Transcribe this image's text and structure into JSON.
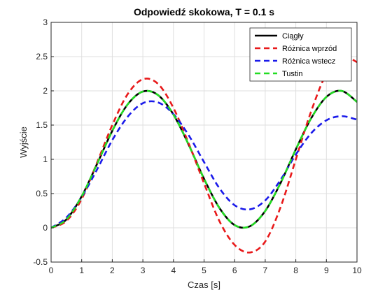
{
  "chart_data": {
    "type": "line",
    "title": "Odpowiedź skokowa, T = 0.1 s",
    "xlabel": "Czas [s]",
    "ylabel": "Wyjście",
    "xlim": [
      0,
      10
    ],
    "ylim": [
      -0.5,
      3
    ],
    "xticks": [
      "0",
      "1",
      "2",
      "3",
      "4",
      "5",
      "6",
      "7",
      "8",
      "9",
      "10"
    ],
    "yticks": [
      "-0.5",
      "0",
      "0.5",
      "1",
      "1.5",
      "2",
      "2.5",
      "3"
    ],
    "grid": true,
    "legend_position": "top-right",
    "series": [
      {
        "name": "Ciągły",
        "color": "#000000",
        "dash": "solid",
        "x": [
          0,
          0.5,
          1,
          1.5,
          2,
          2.5,
          3,
          3.5,
          4,
          4.5,
          5,
          5.5,
          6,
          6.5,
          7,
          7.5,
          8,
          8.5,
          9,
          9.5,
          10
        ],
        "y": [
          0,
          0.122,
          0.46,
          0.93,
          1.416,
          1.801,
          1.99,
          1.937,
          1.654,
          1.211,
          0.716,
          0.292,
          0.04,
          0.023,
          0.246,
          0.653,
          1.145,
          1.598,
          1.911,
          1.999,
          1.839
        ]
      },
      {
        "name": "Różnica wprzód",
        "color": "#e8191a",
        "dash": "dashed",
        "x": [
          0,
          0.5,
          1,
          1.5,
          2,
          2.5,
          3,
          3.5,
          4,
          4.5,
          5,
          5.5,
          6,
          6.5,
          7,
          7.5,
          8,
          8.5,
          9,
          9.5,
          10
        ],
        "y": [
          0,
          0.1,
          0.42,
          0.95,
          1.5,
          1.95,
          2.17,
          2.1,
          1.75,
          1.23,
          0.65,
          0.1,
          -0.25,
          -0.36,
          -0.2,
          0.3,
          1.0,
          1.7,
          2.25,
          2.5,
          2.42
        ]
      },
      {
        "name": "Różnica wstecz",
        "color": "#1a1aea",
        "dash": "dashed",
        "x": [
          0,
          0.5,
          1,
          1.5,
          2,
          2.5,
          3,
          3.5,
          4,
          4.5,
          5,
          5.5,
          6,
          6.5,
          7,
          7.5,
          8,
          8.5,
          9,
          9.5,
          10
        ],
        "y": [
          0,
          0.15,
          0.45,
          0.85,
          1.28,
          1.62,
          1.82,
          1.83,
          1.66,
          1.35,
          0.96,
          0.58,
          0.33,
          0.27,
          0.4,
          0.7,
          1.07,
          1.38,
          1.57,
          1.63,
          1.58
        ]
      },
      {
        "name": "Tustin",
        "color": "#22dd22",
        "dash": "dashed",
        "x": [
          0,
          0.5,
          1,
          1.5,
          2,
          2.5,
          3,
          3.5,
          4,
          4.5,
          5,
          5.5,
          6,
          6.5,
          7,
          7.5,
          8,
          8.5,
          9,
          9.5,
          10
        ],
        "y": [
          0,
          0.122,
          0.46,
          0.93,
          1.416,
          1.801,
          1.99,
          1.937,
          1.654,
          1.211,
          0.716,
          0.292,
          0.04,
          0.023,
          0.246,
          0.653,
          1.145,
          1.598,
          1.911,
          1.999,
          1.839
        ]
      }
    ]
  }
}
